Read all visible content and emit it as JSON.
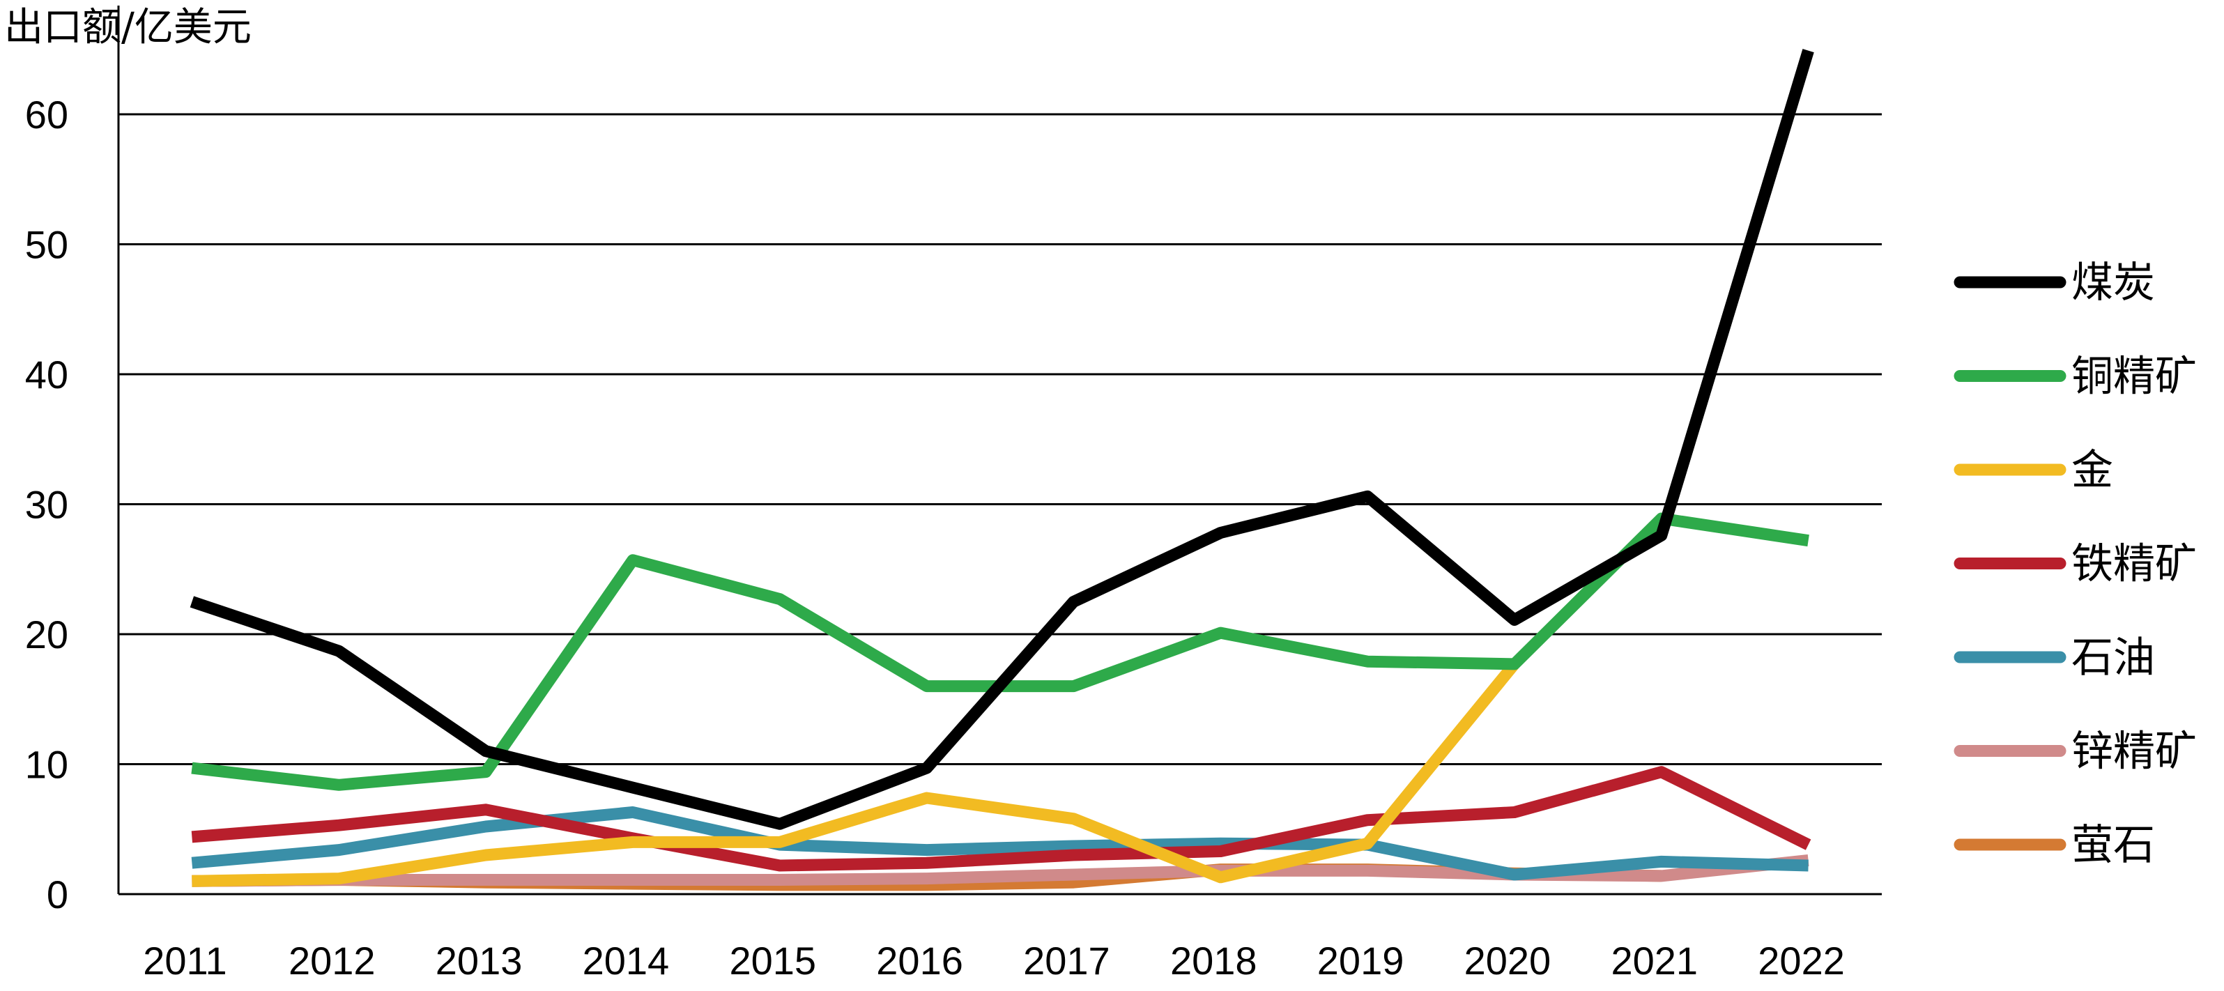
{
  "chart_data": {
    "type": "line",
    "title": "",
    "xlabel": "",
    "ylabel": "出口额/亿美元",
    "x": [
      "2011",
      "2012",
      "2013",
      "2014",
      "2015",
      "2016",
      "2017",
      "2018",
      "2019",
      "2020",
      "2021",
      "2022"
    ],
    "yticks": [
      "0",
      "10",
      "20",
      "30",
      "40",
      "50",
      "60"
    ],
    "ylim": [
      0,
      65
    ],
    "grid": "horizontal",
    "legend": "right",
    "series": [
      {
        "name": "煤炭",
        "color": "#000000",
        "values": [
          22.5,
          18.7,
          11.0,
          8.2,
          5.4,
          9.7,
          22.5,
          27.8,
          30.6,
          21.1,
          27.6,
          64.9
        ]
      },
      {
        "name": "铜精矿",
        "color": "#2eaa4a",
        "values": [
          9.7,
          8.4,
          9.4,
          25.7,
          22.7,
          16.0,
          16.0,
          20.1,
          17.9,
          17.7,
          28.9,
          27.2
        ]
      },
      {
        "name": "金",
        "color": "#f2bb22",
        "values": [
          1.0,
          1.2,
          3.0,
          4.0,
          4.0,
          7.4,
          5.8,
          1.3,
          3.9,
          17.7,
          null,
          null
        ]
      },
      {
        "name": "铁精矿",
        "color": "#b81f2c",
        "values": [
          4.4,
          5.3,
          6.5,
          4.3,
          2.2,
          2.4,
          3.0,
          3.3,
          5.7,
          6.3,
          9.4,
          3.8
        ]
      },
      {
        "name": "石油",
        "color": "#3a8fa8",
        "values": [
          2.4,
          3.4,
          5.2,
          6.3,
          3.8,
          3.4,
          3.7,
          3.9,
          3.8,
          1.5,
          2.5,
          2.2
        ]
      },
      {
        "name": "锌精矿",
        "color": "#d08a8a",
        "values": [
          1.0,
          1.1,
          1.1,
          1.1,
          1.1,
          1.2,
          1.5,
          1.8,
          1.8,
          1.5,
          1.4,
          2.6
        ]
      },
      {
        "name": "萤石",
        "color": "#d47a33",
        "values": [
          1.0,
          1.1,
          0.9,
          0.8,
          0.7,
          0.7,
          0.9,
          1.9,
          1.9,
          1.6,
          1.4,
          null
        ]
      }
    ]
  }
}
